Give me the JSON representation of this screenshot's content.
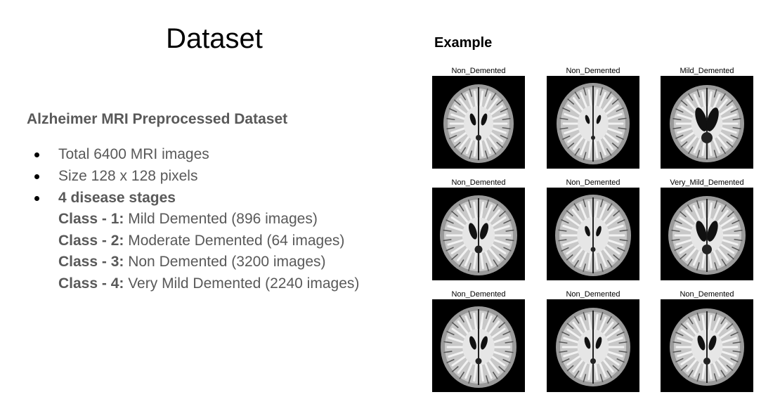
{
  "slide": {
    "title": "Dataset",
    "subtitle": "Alzheimer MRI Preprocessed Dataset",
    "bullets": [
      "Total 6400 MRI images",
      "Size 128 x 128 pixels",
      "4 disease stages"
    ],
    "classes": [
      {
        "label": "Class - 1:",
        "text": " Mild Demented (896 images)"
      },
      {
        "label": "Class - 2:",
        "text": " Moderate Demented (64 images)"
      },
      {
        "label": "Class - 3:",
        "text": " Non Demented (3200 images)"
      },
      {
        "label": "Class - 4:",
        "text": " Very Mild Demented (2240 images)"
      }
    ]
  },
  "example": {
    "heading": "Example",
    "images": [
      {
        "caption": "Non_Demented"
      },
      {
        "caption": "Non_Demented"
      },
      {
        "caption": "Mild_Demented"
      },
      {
        "caption": "Non_Demented"
      },
      {
        "caption": "Non_Demented"
      },
      {
        "caption": "Very_Mild_Demented"
      },
      {
        "caption": "Non_Demented"
      },
      {
        "caption": "Non_Demented"
      },
      {
        "caption": "Non_Demented"
      }
    ]
  }
}
